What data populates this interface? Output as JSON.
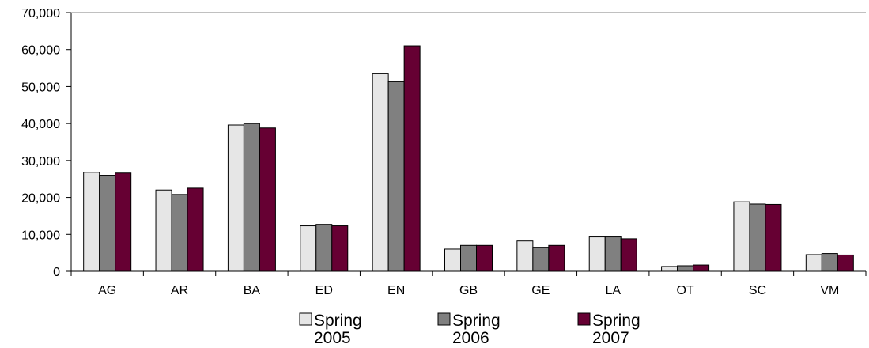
{
  "chart_data": {
    "type": "bar",
    "categories": [
      "AG",
      "AR",
      "BA",
      "ED",
      "EN",
      "GB",
      "GE",
      "LA",
      "OT",
      "SC",
      "VM"
    ],
    "series": [
      {
        "name": "Spring 2005",
        "color": "#e6e6e6",
        "values": [
          26800,
          22000,
          39600,
          12300,
          53600,
          6000,
          8200,
          9300,
          1300,
          18800,
          4500
        ]
      },
      {
        "name": "Spring 2006",
        "color": "#808080",
        "values": [
          26000,
          20800,
          40000,
          12700,
          51300,
          7000,
          6500,
          9300,
          1500,
          18200,
          4800
        ]
      },
      {
        "name": "Spring 2007",
        "color": "#660033",
        "values": [
          26600,
          22500,
          38800,
          12300,
          61000,
          7000,
          7000,
          8800,
          1700,
          18100,
          4400
        ]
      }
    ],
    "ylim": [
      0,
      70000
    ],
    "ytick_labels": [
      "0",
      "10,000",
      "20,000",
      "30,000",
      "40,000",
      "50,000",
      "60,000",
      "70,000"
    ],
    "grid": false,
    "legend_position": "bottom",
    "legend_items": [
      {
        "line1": "Spring",
        "line2": "2005"
      },
      {
        "line1": "Spring",
        "line2": "2006"
      },
      {
        "line1": "Spring",
        "line2": "2007"
      }
    ],
    "title": "",
    "xlabel": "",
    "ylabel": ""
  }
}
